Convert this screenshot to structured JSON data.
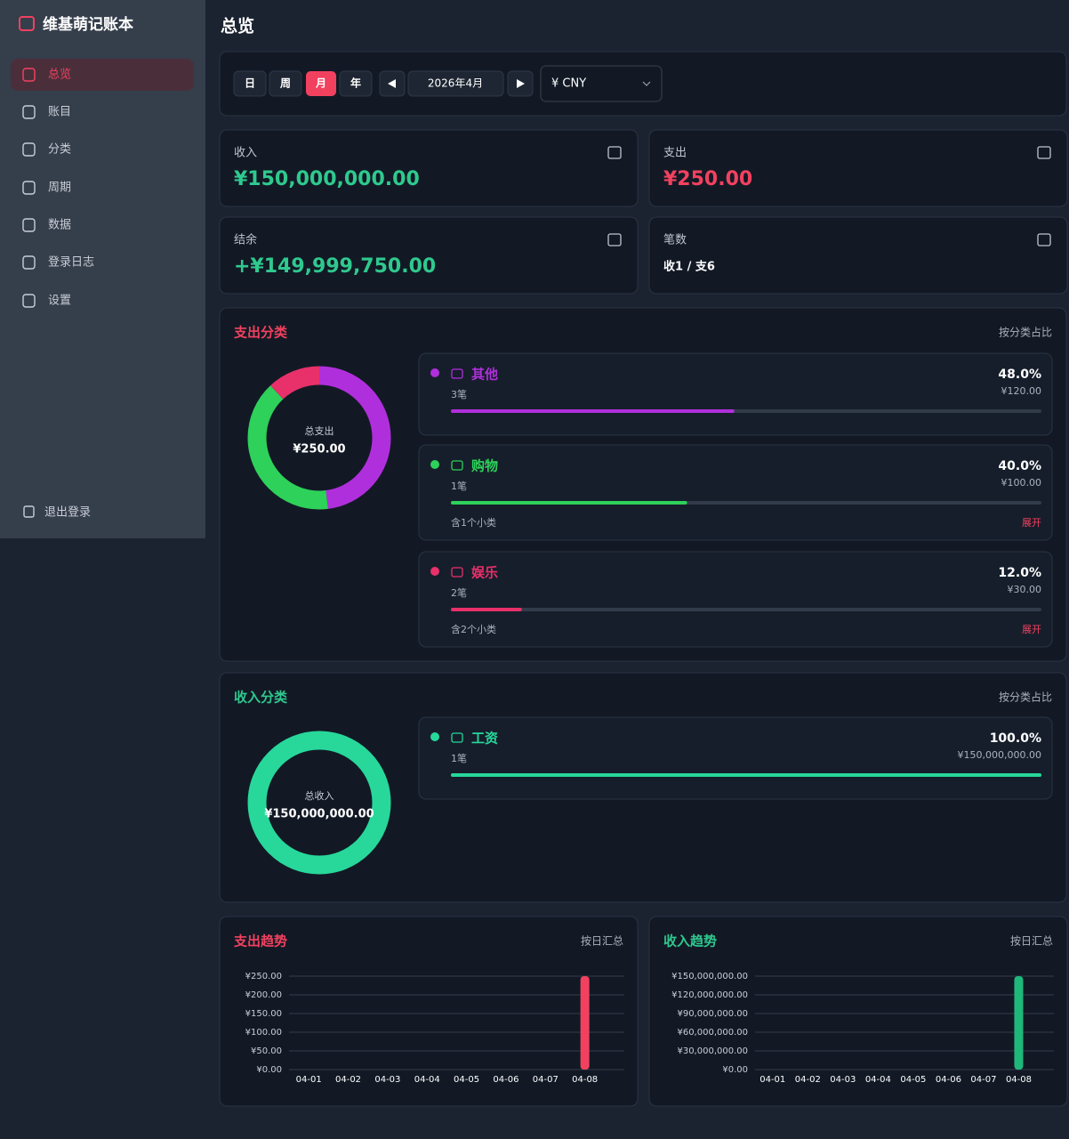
{
  "sidebar": {
    "brand": "维基萌记账本",
    "nav": [
      "总览",
      "账目",
      "分类",
      "周期",
      "数据",
      "登录日志",
      "设置"
    ],
    "active": 0,
    "logout": "退出登录"
  },
  "header": {
    "title": "总览"
  },
  "toolbar": {
    "periods": [
      "日",
      "周",
      "月",
      "年"
    ],
    "active": 2,
    "date": "2026年4月",
    "currency": "¥ CNY"
  },
  "summary": [
    {
      "label": "收入",
      "value": "¥150,000,000.00",
      "color": "#2fc98e"
    },
    {
      "label": "支出",
      "value": "¥250.00",
      "color": "#f2415f"
    },
    {
      "label": "结余",
      "value": "+¥149,999,750.00",
      "color": "#2fc98e"
    },
    {
      "label": "笔数",
      "value": "收1 / 支6",
      "color": "#ffffff"
    }
  ],
  "expense_categories": {
    "title": "支出分类",
    "note": "按分类占比",
    "center_label": "总支出",
    "center_value": "¥250.00",
    "items": [
      {
        "name": "其他",
        "color": "#b02fdc",
        "count": "3笔",
        "percent": 48.0,
        "percent_label": "48.0%",
        "amount": "¥120.00"
      },
      {
        "name": "购物",
        "color": "#2ed15a",
        "count": "1笔",
        "percent": 40.0,
        "percent_label": "40.0%",
        "amount": "¥100.00",
        "sub": "含1个小类",
        "expand": "展开"
      },
      {
        "name": "娱乐",
        "color": "#e8306a",
        "count": "2笔",
        "percent": 12.0,
        "percent_label": "12.0%",
        "amount": "¥30.00",
        "sub": "含2个小类",
        "expand": "展开"
      }
    ]
  },
  "income_categories": {
    "title": "收入分类",
    "note": "按分类占比",
    "center_label": "总收入",
    "center_value": "¥150,000,000.00",
    "items": [
      {
        "name": "工资",
        "color": "#27d89a",
        "count": "1笔",
        "percent": 100.0,
        "percent_label": "100.0%",
        "amount": "¥150,000,000.00"
      }
    ]
  },
  "expense_trend": {
    "type": "bar",
    "title": "支出趋势",
    "note": "按日汇总",
    "color": "#f2415f",
    "categories": [
      "04-01",
      "04-02",
      "04-03",
      "04-04",
      "04-05",
      "04-06",
      "04-07",
      "04-08"
    ],
    "values": [
      0,
      0,
      0,
      0,
      0,
      0,
      0,
      250
    ],
    "ylim": [
      0,
      250
    ],
    "yticks": [
      {
        "value": 0,
        "label": "¥0.00"
      },
      {
        "value": 50,
        "label": "¥50.00"
      },
      {
        "value": 100,
        "label": "¥100.00"
      },
      {
        "value": 150,
        "label": "¥150.00"
      },
      {
        "value": 200,
        "label": "¥200.00"
      },
      {
        "value": 250,
        "label": "¥250.00"
      }
    ]
  },
  "income_trend": {
    "type": "bar",
    "title": "收入趋势",
    "note": "按日汇总",
    "color": "#1fb87a",
    "categories": [
      "04-01",
      "04-02",
      "04-03",
      "04-04",
      "04-05",
      "04-06",
      "04-07",
      "04-08"
    ],
    "values": [
      0,
      0,
      0,
      0,
      0,
      0,
      0,
      150000000
    ],
    "ylim": [
      0,
      150000000
    ],
    "yticks": [
      {
        "value": 0,
        "label": "¥0.00"
      },
      {
        "value": 30000000,
        "label": "¥30,000,000.00"
      },
      {
        "value": 60000000,
        "label": "¥60,000,000.00"
      },
      {
        "value": 90000000,
        "label": "¥90,000,000.00"
      },
      {
        "value": 120000000,
        "label": "¥120,000,000.00"
      },
      {
        "value": 150000000,
        "label": "¥150,000,000.00"
      }
    ]
  }
}
